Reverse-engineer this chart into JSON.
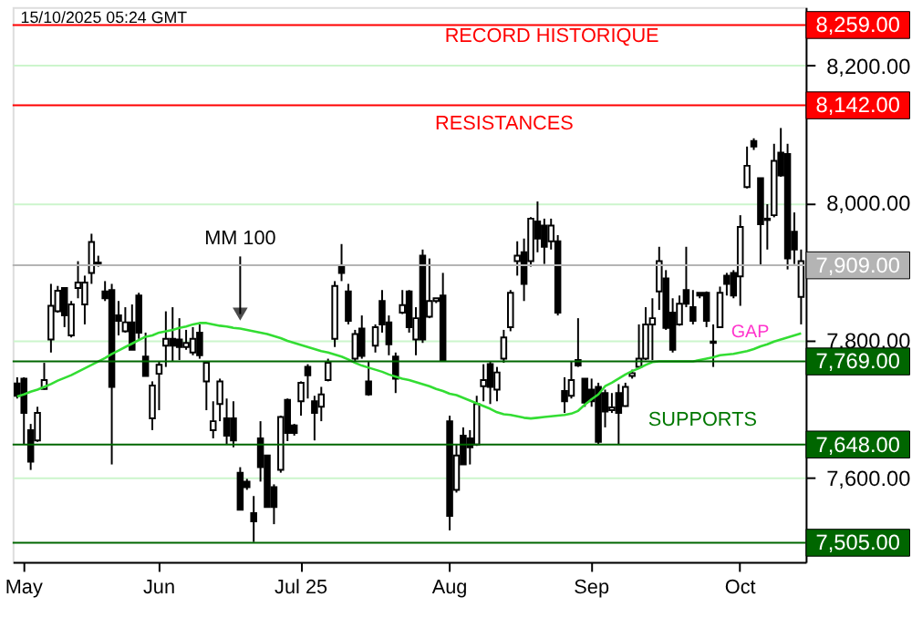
{
  "chart_data": {
    "type": "candlestick",
    "categories": [
      null,
      "May",
      null,
      null,
      null,
      null,
      null,
      null,
      null,
      null,
      null,
      null,
      null,
      null,
      null,
      null,
      null,
      null,
      null,
      null,
      null,
      "Jun",
      null,
      null,
      null,
      null,
      null,
      null,
      null,
      null,
      null,
      null,
      null,
      null,
      null,
      null,
      null,
      null,
      null,
      null,
      null,
      null,
      "Jul 25",
      null,
      null,
      null,
      null,
      null,
      null,
      null,
      null,
      null,
      null,
      null,
      null,
      null,
      null,
      null,
      null,
      null,
      null,
      null,
      null,
      null,
      "Aug",
      null,
      null,
      null,
      null,
      null,
      null,
      null,
      null,
      null,
      null,
      null,
      null,
      null,
      null,
      null,
      null,
      null,
      null,
      null,
      null,
      "Sep",
      null,
      null,
      null,
      null,
      null,
      null,
      null,
      null,
      null,
      null,
      null,
      null,
      null,
      null,
      null,
      null,
      null,
      null,
      null,
      null,
      null,
      "Oct",
      null,
      null,
      null,
      null,
      null,
      null,
      null,
      null,
      null
    ],
    "ohlc": [
      [
        7737,
        7746,
        7715,
        7719
      ],
      [
        7744,
        7746,
        7648,
        7694
      ],
      [
        7669,
        7678,
        7611,
        7623
      ],
      [
        7654,
        7703,
        7652,
        7694
      ],
      [
        7729,
        7767,
        7728,
        7742
      ],
      [
        7801,
        7882,
        7782,
        7850
      ],
      [
        7842,
        7879,
        7840,
        7872
      ],
      [
        7876,
        7877,
        7819,
        7836
      ],
      [
        7807,
        7857,
        7804,
        7852
      ],
      [
        7876,
        7915,
        7861,
        7884
      ],
      [
        7852,
        7894,
        7823,
        7884
      ],
      [
        7898,
        7955,
        7882,
        7943
      ],
      [
        7913,
        7923,
        7907,
        7911
      ],
      [
        7871,
        7886,
        7857,
        7861
      ],
      [
        7873,
        7882,
        7619,
        7732
      ],
      [
        7836,
        7857,
        7807,
        7828
      ],
      [
        7813,
        7848,
        7811,
        7826
      ],
      [
        7826,
        7852,
        7786,
        7786
      ],
      [
        7865,
        7869,
        7802,
        7811
      ],
      [
        7776,
        7811,
        7748,
        7748
      ],
      [
        7686,
        7740,
        7669,
        7734
      ],
      [
        7751,
        7769,
        7698,
        7764
      ],
      [
        7792,
        7842,
        7761,
        7802
      ],
      [
        7802,
        7848,
        7769,
        7792
      ],
      [
        7801,
        7832,
        7771,
        7790
      ],
      [
        7790,
        7815,
        7786,
        7796
      ],
      [
        7782,
        7819,
        7778,
        7802
      ],
      [
        7811,
        7823,
        7773,
        7778
      ],
      [
        7740,
        7769,
        7698,
        7767
      ],
      [
        7669,
        7711,
        7657,
        7682
      ],
      [
        7707,
        7744,
        7682,
        7740
      ],
      [
        7686,
        7715,
        7648,
        7661
      ],
      [
        7686,
        7711,
        7644,
        7654
      ],
      [
        7607,
        7615,
        7553,
        7553
      ],
      [
        7594,
        7598,
        7582,
        7586
      ],
      [
        7548,
        7573,
        7506,
        7536
      ],
      [
        7657,
        7682,
        7594,
        7615
      ],
      [
        7632,
        7632,
        7557,
        7557
      ],
      [
        7586,
        7590,
        7532,
        7557
      ],
      [
        7611,
        7690,
        7607,
        7688
      ],
      [
        7713,
        7715,
        7653,
        7665
      ],
      [
        7676,
        7678,
        7661,
        7665
      ],
      [
        7711,
        7740,
        7690,
        7738
      ],
      [
        7761,
        7765,
        7715,
        7749
      ],
      [
        7711,
        7719,
        7654,
        7694
      ],
      [
        7703,
        7732,
        7682,
        7721
      ],
      [
        7742,
        7773,
        7740,
        7767
      ],
      [
        7802,
        7886,
        7790,
        7879
      ],
      [
        7909,
        7940,
        7886,
        7898
      ],
      [
        7871,
        7882,
        7823,
        7828
      ],
      [
        7773,
        7815,
        7769,
        7809
      ],
      [
        7817,
        7836,
        7773,
        7777
      ],
      [
        7740,
        7769,
        7719,
        7721
      ],
      [
        7792,
        7823,
        7782,
        7819
      ],
      [
        7857,
        7873,
        7811,
        7823
      ],
      [
        7826,
        7836,
        7778,
        7794
      ],
      [
        7776,
        7782,
        7723,
        7744
      ],
      [
        7840,
        7873,
        7838,
        7851
      ],
      [
        7871,
        7873,
        7811,
        7819
      ],
      [
        7801,
        7848,
        7778,
        7832
      ],
      [
        7923,
        7932,
        7796,
        7801
      ],
      [
        7834,
        7919,
        7832,
        7857
      ],
      [
        7857,
        7861,
        7854,
        7861
      ],
      [
        7865,
        7898,
        7769,
        7771
      ],
      [
        7682,
        7690,
        7523,
        7544
      ],
      [
        7582,
        7648,
        7578,
        7632
      ],
      [
        7661,
        7673,
        7619,
        7619
      ],
      [
        7657,
        7669,
        7619,
        7644
      ],
      [
        7648,
        7719,
        7646,
        7707
      ],
      [
        7733,
        7765,
        7711,
        7742
      ],
      [
        7765,
        7769,
        7707,
        7732
      ],
      [
        7728,
        7761,
        7711,
        7753
      ],
      [
        7773,
        7815,
        7767,
        7804
      ],
      [
        7819,
        7873,
        7813,
        7869
      ],
      [
        7915,
        7944,
        7894,
        7923
      ],
      [
        7928,
        7948,
        7857,
        7882
      ],
      [
        7915,
        7979,
        7907,
        7977
      ],
      [
        7973,
        8002,
        7928,
        7948
      ],
      [
        7967,
        7977,
        7911,
        7936
      ],
      [
        7944,
        7977,
        7932,
        7967
      ],
      [
        7944,
        7953,
        7836,
        7840
      ],
      [
        7726,
        7746,
        7694,
        7711
      ],
      [
        7719,
        7769,
        7715,
        7742
      ],
      [
        7771,
        7832,
        7761,
        7763
      ],
      [
        7744,
        7744,
        7703,
        7709
      ],
      [
        7728,
        7744,
        7703,
        7711
      ],
      [
        7732,
        7738,
        7648,
        7652
      ],
      [
        7723,
        7728,
        7673,
        7696
      ],
      [
        7698,
        7723,
        7694,
        7702
      ],
      [
        7723,
        7736,
        7648,
        7694
      ],
      [
        7704,
        7738,
        7703,
        7732
      ],
      [
        7748,
        7757,
        7744,
        7752
      ],
      [
        7761,
        7823,
        7761,
        7773
      ],
      [
        7773,
        7848,
        7771,
        7823
      ],
      [
        7823,
        7861,
        7771,
        7832
      ],
      [
        7871,
        7936,
        7844,
        7915
      ],
      [
        7890,
        7902,
        7815,
        7818
      ],
      [
        7840,
        7861,
        7782,
        7786
      ],
      [
        7823,
        7865,
        7821,
        7853
      ],
      [
        7873,
        7936,
        7848,
        7853
      ],
      [
        7848,
        7873,
        7823,
        7828
      ],
      [
        7869,
        7869,
        7861,
        7865
      ],
      [
        7869,
        7871,
        7819,
        7828
      ],
      [
        7798,
        7823,
        7761,
        7796
      ],
      [
        7819,
        7878,
        7818,
        7869
      ],
      [
        7894,
        7898,
        7865,
        7882
      ],
      [
        7898,
        7902,
        7861,
        7865
      ],
      [
        7893,
        7982,
        7850,
        7965
      ],
      [
        8023,
        8082,
        8021,
        8054
      ],
      [
        8090,
        8094,
        8077,
        8082
      ],
      [
        8036,
        8036,
        7909,
        7969
      ],
      [
        7977,
        7998,
        7932,
        7975
      ],
      [
        7982,
        8086,
        7979,
        8061
      ],
      [
        8073,
        8109,
        8038,
        8040
      ],
      [
        8071,
        8086,
        7903,
        7919
      ],
      [
        7958,
        7986,
        7911,
        7932
      ],
      [
        7863,
        7932,
        7823,
        7915
      ]
    ],
    "series": [
      {
        "type": "line",
        "name": "MM 100",
        "color": "#33dd33",
        "values": [
          7718,
          7721,
          7725,
          7728,
          7732,
          7736,
          7741,
          7745,
          7749,
          7754,
          7759,
          7764,
          7769,
          7774,
          7780,
          7785,
          7790,
          7795,
          7800,
          7805,
          7807,
          7811,
          7813,
          7815,
          7818,
          7820,
          7823,
          7825,
          7825,
          7823,
          7821,
          7820,
          7818,
          7817,
          7815,
          7813,
          7811,
          7809,
          7806,
          7803,
          7799,
          7796,
          7793,
          7790,
          7787,
          7784,
          7782,
          7779,
          7776,
          7772,
          7767,
          7763,
          7760,
          7757,
          7754,
          7750,
          7747,
          7744,
          7742,
          7739,
          7736,
          7733,
          7729,
          7726,
          7722,
          7720,
          7716,
          7712,
          7708,
          7704,
          7700,
          7695,
          7692,
          7691,
          7689,
          7687,
          7686,
          7687,
          7688,
          7689,
          7690,
          7691,
          7693,
          7697,
          7706,
          7714,
          7721,
          7733,
          7738,
          7744,
          7750,
          7755,
          7759,
          7764,
          7768,
          7769,
          7769,
          7769,
          7769,
          7769,
          7769,
          7771,
          7773,
          7775,
          7778,
          7779,
          7780,
          7782,
          7784,
          7787,
          7791,
          7794,
          7798,
          7801,
          7804,
          7807,
          7810
        ]
      }
    ],
    "ylim": [
      7477,
      8285
    ],
    "yticks": [
      {
        "value": 7600,
        "label": "7,600.00"
      },
      {
        "value": 7800,
        "label": "7,800.00"
      },
      {
        "value": 8000,
        "label": "8,000.00"
      },
      {
        "value": 8200,
        "label": "8,200.00"
      }
    ],
    "grid": "y",
    "ref_lines": [
      {
        "axis": "y",
        "value": 8259,
        "label": "8,259.00",
        "color": "#ff0000"
      },
      {
        "axis": "y",
        "value": 8142,
        "label": "8,142.00",
        "color": "#ff0000"
      },
      {
        "axis": "y",
        "value": 7909,
        "label": "7,909.00",
        "color": "#b4b4b4"
      },
      {
        "axis": "y",
        "value": 7769,
        "label": "7,769.00",
        "color": "#006600"
      },
      {
        "axis": "y",
        "value": 7648,
        "label": "7,648.00",
        "color": "#006600"
      },
      {
        "axis": "y",
        "value": 7505,
        "label": "7,505.00",
        "color": "#006600"
      }
    ],
    "annotations": [
      "15/10/2025 05:24 GMT",
      "RECORD HISTORIQUE",
      "RESISTANCES",
      "SUPPORTS",
      "GAP"
    ]
  }
}
